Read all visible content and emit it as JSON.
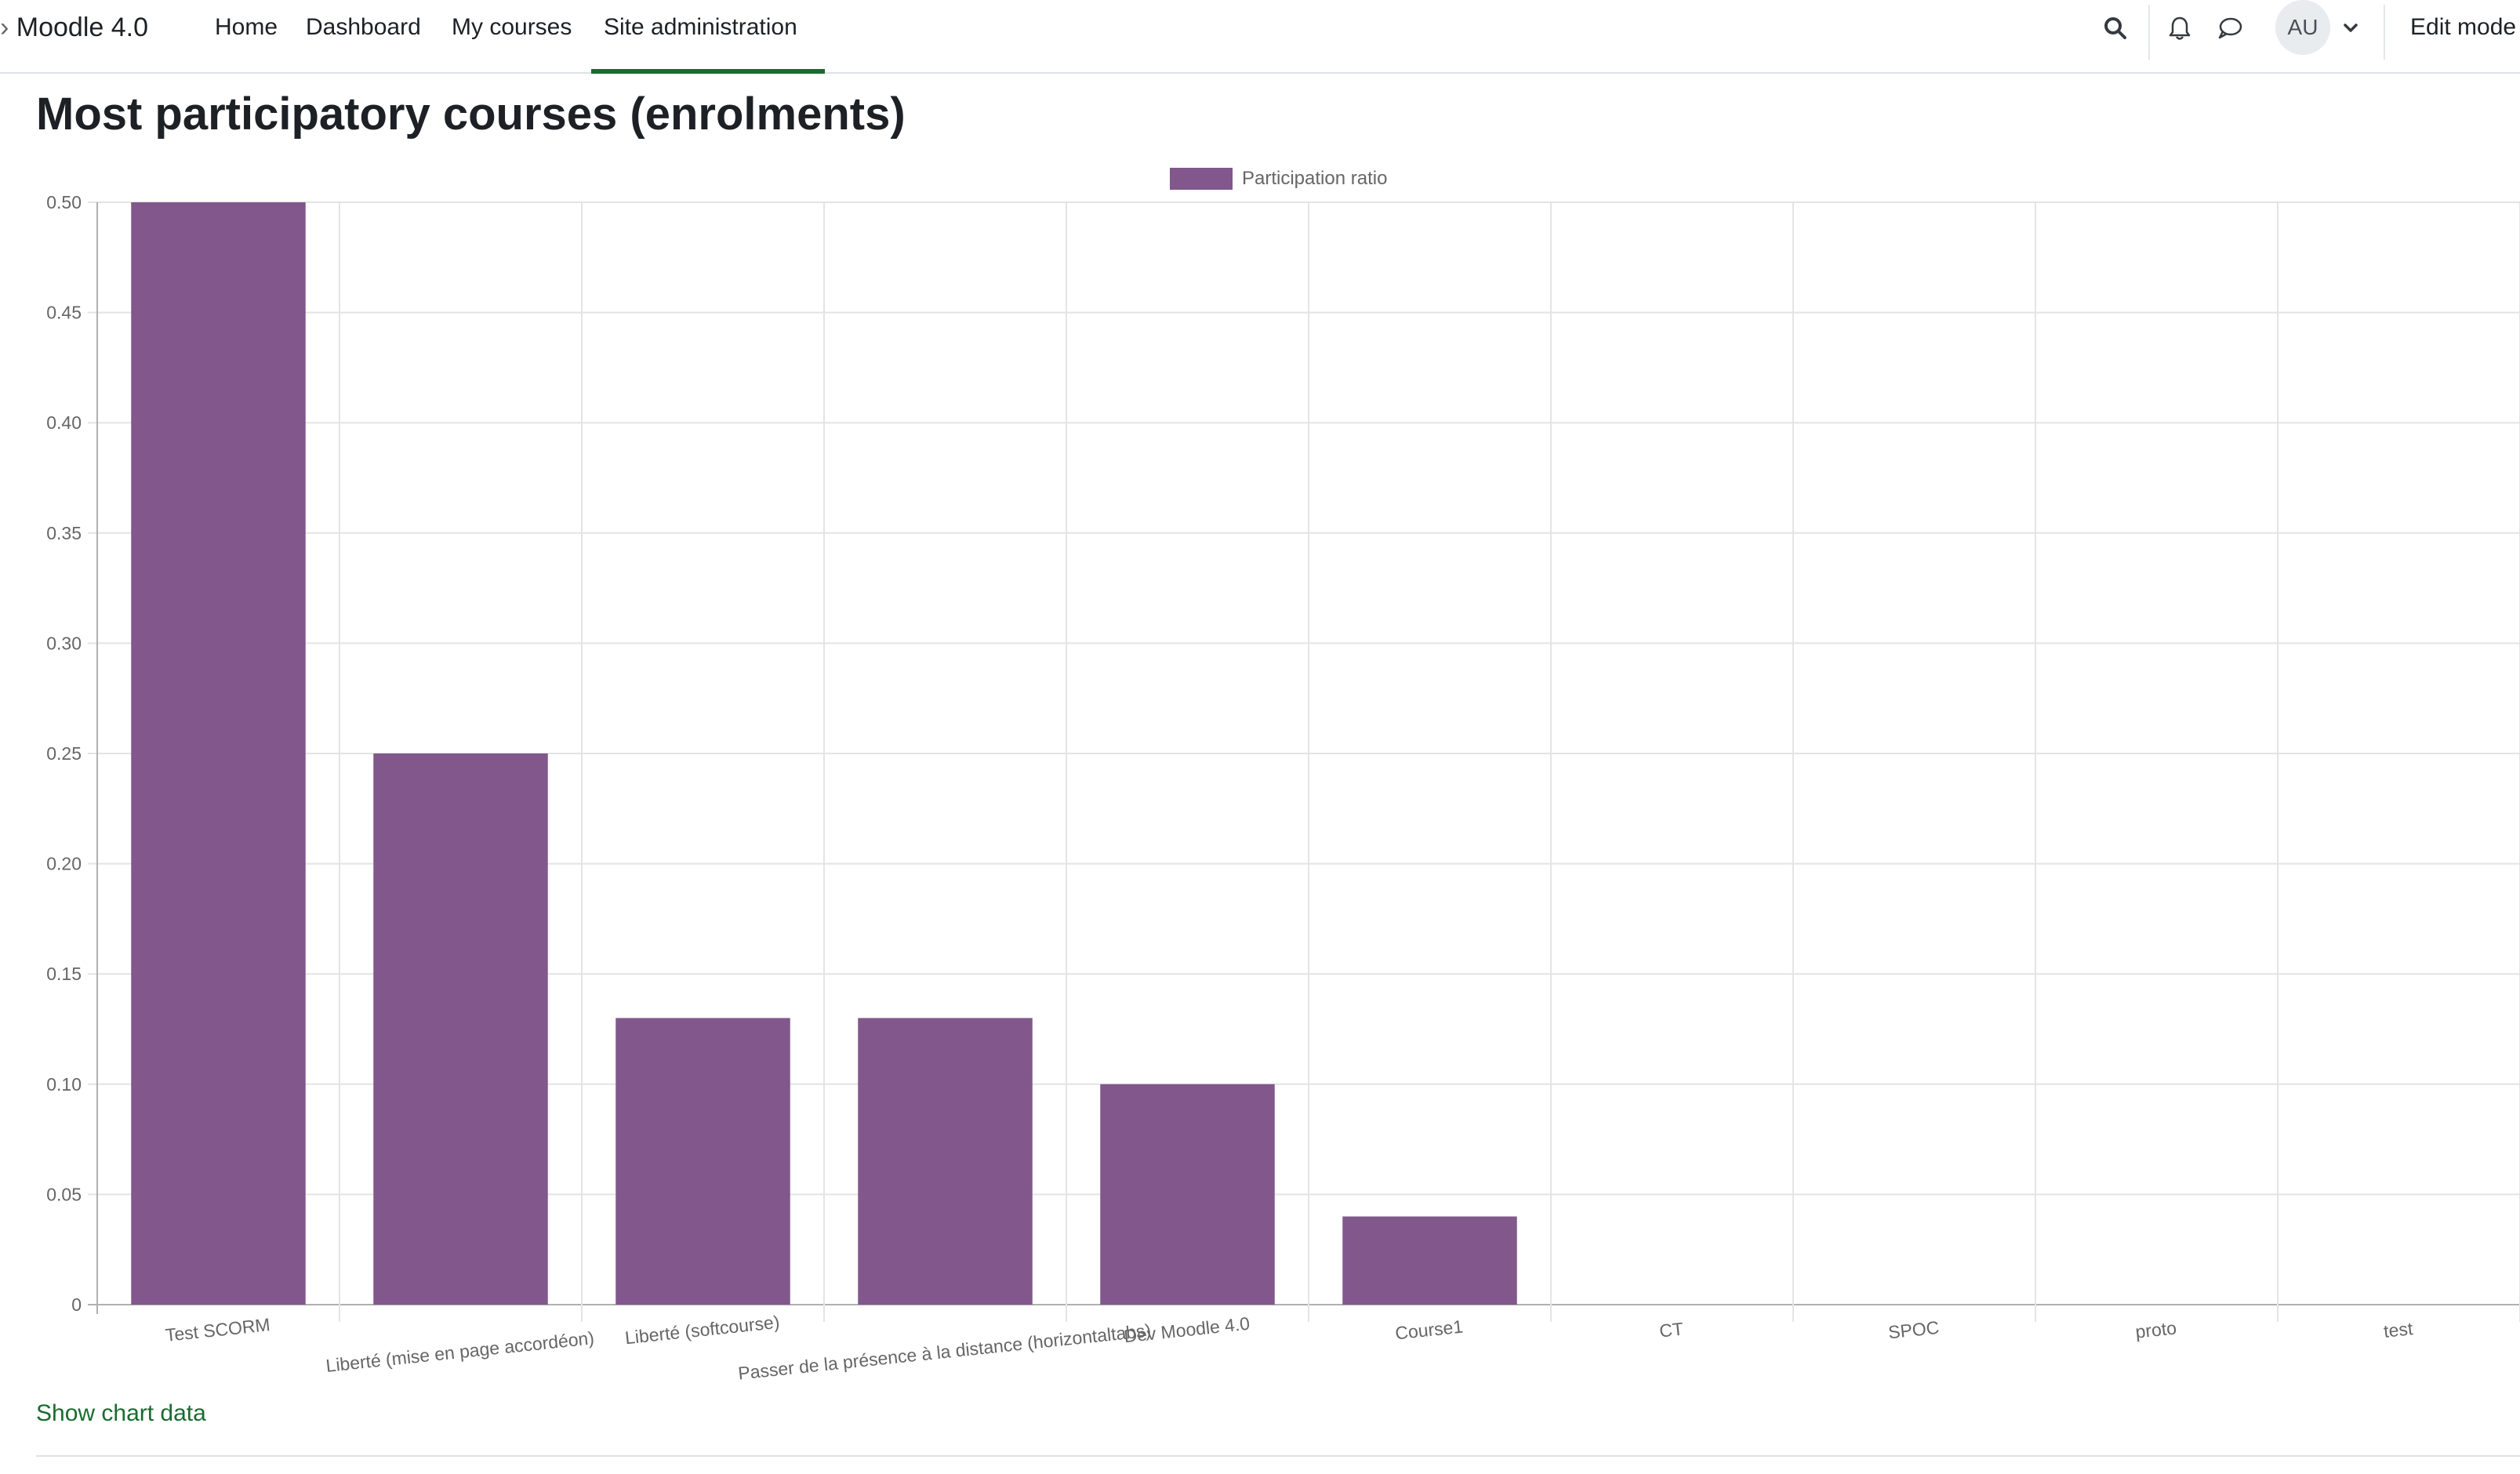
{
  "navbar": {
    "brand": "Moodle 4.0",
    "items": [
      {
        "label": "Home"
      },
      {
        "label": "Dashboard"
      },
      {
        "label": "My courses"
      },
      {
        "label": "Site administration",
        "active": true
      }
    ],
    "icons": [
      "search-icon",
      "bell-icon",
      "chat-icon",
      "chevron-down-icon"
    ],
    "user_initials": "AU",
    "edit_mode_label": "Edit mode",
    "active_color": "#1a6b2f"
  },
  "page": {
    "title": "Most participatory courses (enrolments)",
    "show_chart_data": "Show chart data"
  },
  "chart_data": {
    "type": "bar",
    "categories": [
      "Test SCORM",
      "Liberté (mise en page accordéon)",
      "Liberté (softcourse)",
      "Passer de la présence à la distance (horizontaltabs)",
      "Dev Moodle 4.0",
      "Course1",
      "CT",
      "SPOC",
      "proto",
      "test"
    ],
    "series": [
      {
        "name": "Participation ratio",
        "values": [
          0.5,
          0.25,
          0.13,
          0.13,
          0.1,
          0.04,
          0,
          0,
          0,
          0
        ],
        "color": "#81578c"
      }
    ],
    "ylim": [
      0,
      0.5
    ],
    "yticks": [
      "0",
      "0.05",
      "0.10",
      "0.15",
      "0.20",
      "0.25",
      "0.30",
      "0.35",
      "0.40",
      "0.45",
      "0.50"
    ],
    "grid": true,
    "legend": "top-center"
  }
}
